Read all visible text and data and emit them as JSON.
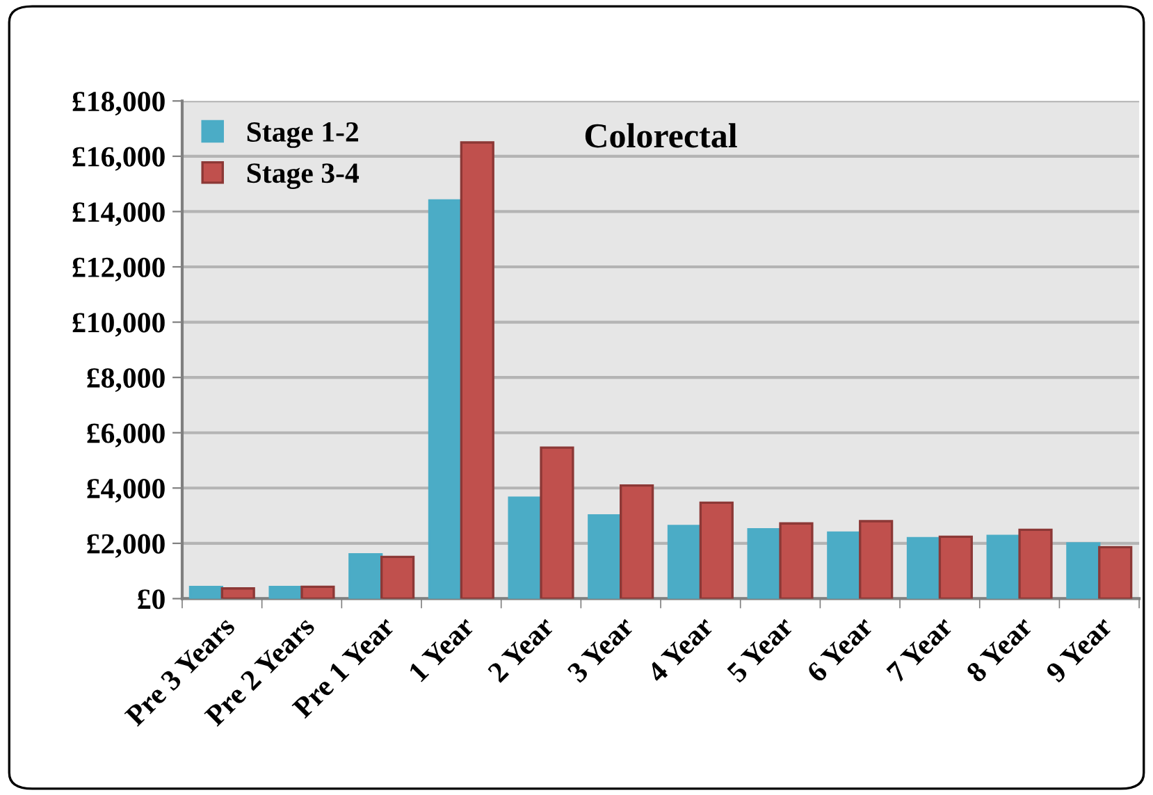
{
  "chart_data": {
    "type": "bar",
    "title": "Colorectal",
    "categories": [
      "Pre 3 Years",
      "Pre 2 Years",
      "Pre 1 Year",
      "1 Year",
      "2 Year",
      "3 Year",
      "4 Year",
      "5 Year",
      "6 Year",
      "7 Year",
      "8 Year",
      "9 Year"
    ],
    "series": [
      {
        "name": "Stage 1-2",
        "color": "#4bacc6",
        "values": [
          420,
          420,
          1600,
          14400,
          3650,
          3010,
          2630,
          2510,
          2390,
          2190,
          2270,
          2000
        ]
      },
      {
        "name": "Stage 3-4",
        "color": "#c0504d",
        "values": [
          370,
          430,
          1510,
          16500,
          5460,
          4090,
          3470,
          2720,
          2800,
          2240,
          2490,
          1860
        ]
      }
    ],
    "ylim": [
      0,
      18000
    ],
    "yticks": [
      {
        "value": 0,
        "label": "£0"
      },
      {
        "value": 2000,
        "label": "£2,000"
      },
      {
        "value": 4000,
        "label": "£4,000"
      },
      {
        "value": 6000,
        "label": "£6,000"
      },
      {
        "value": 8000,
        "label": "£8,000"
      },
      {
        "value": 10000,
        "label": "£10,000"
      },
      {
        "value": 12000,
        "label": "£12,000"
      },
      {
        "value": 14000,
        "label": "£14,000"
      },
      {
        "value": 16000,
        "label": "£16,000"
      },
      {
        "value": 18000,
        "label": "£18,000"
      }
    ],
    "grid": "y",
    "legend": "top left"
  }
}
